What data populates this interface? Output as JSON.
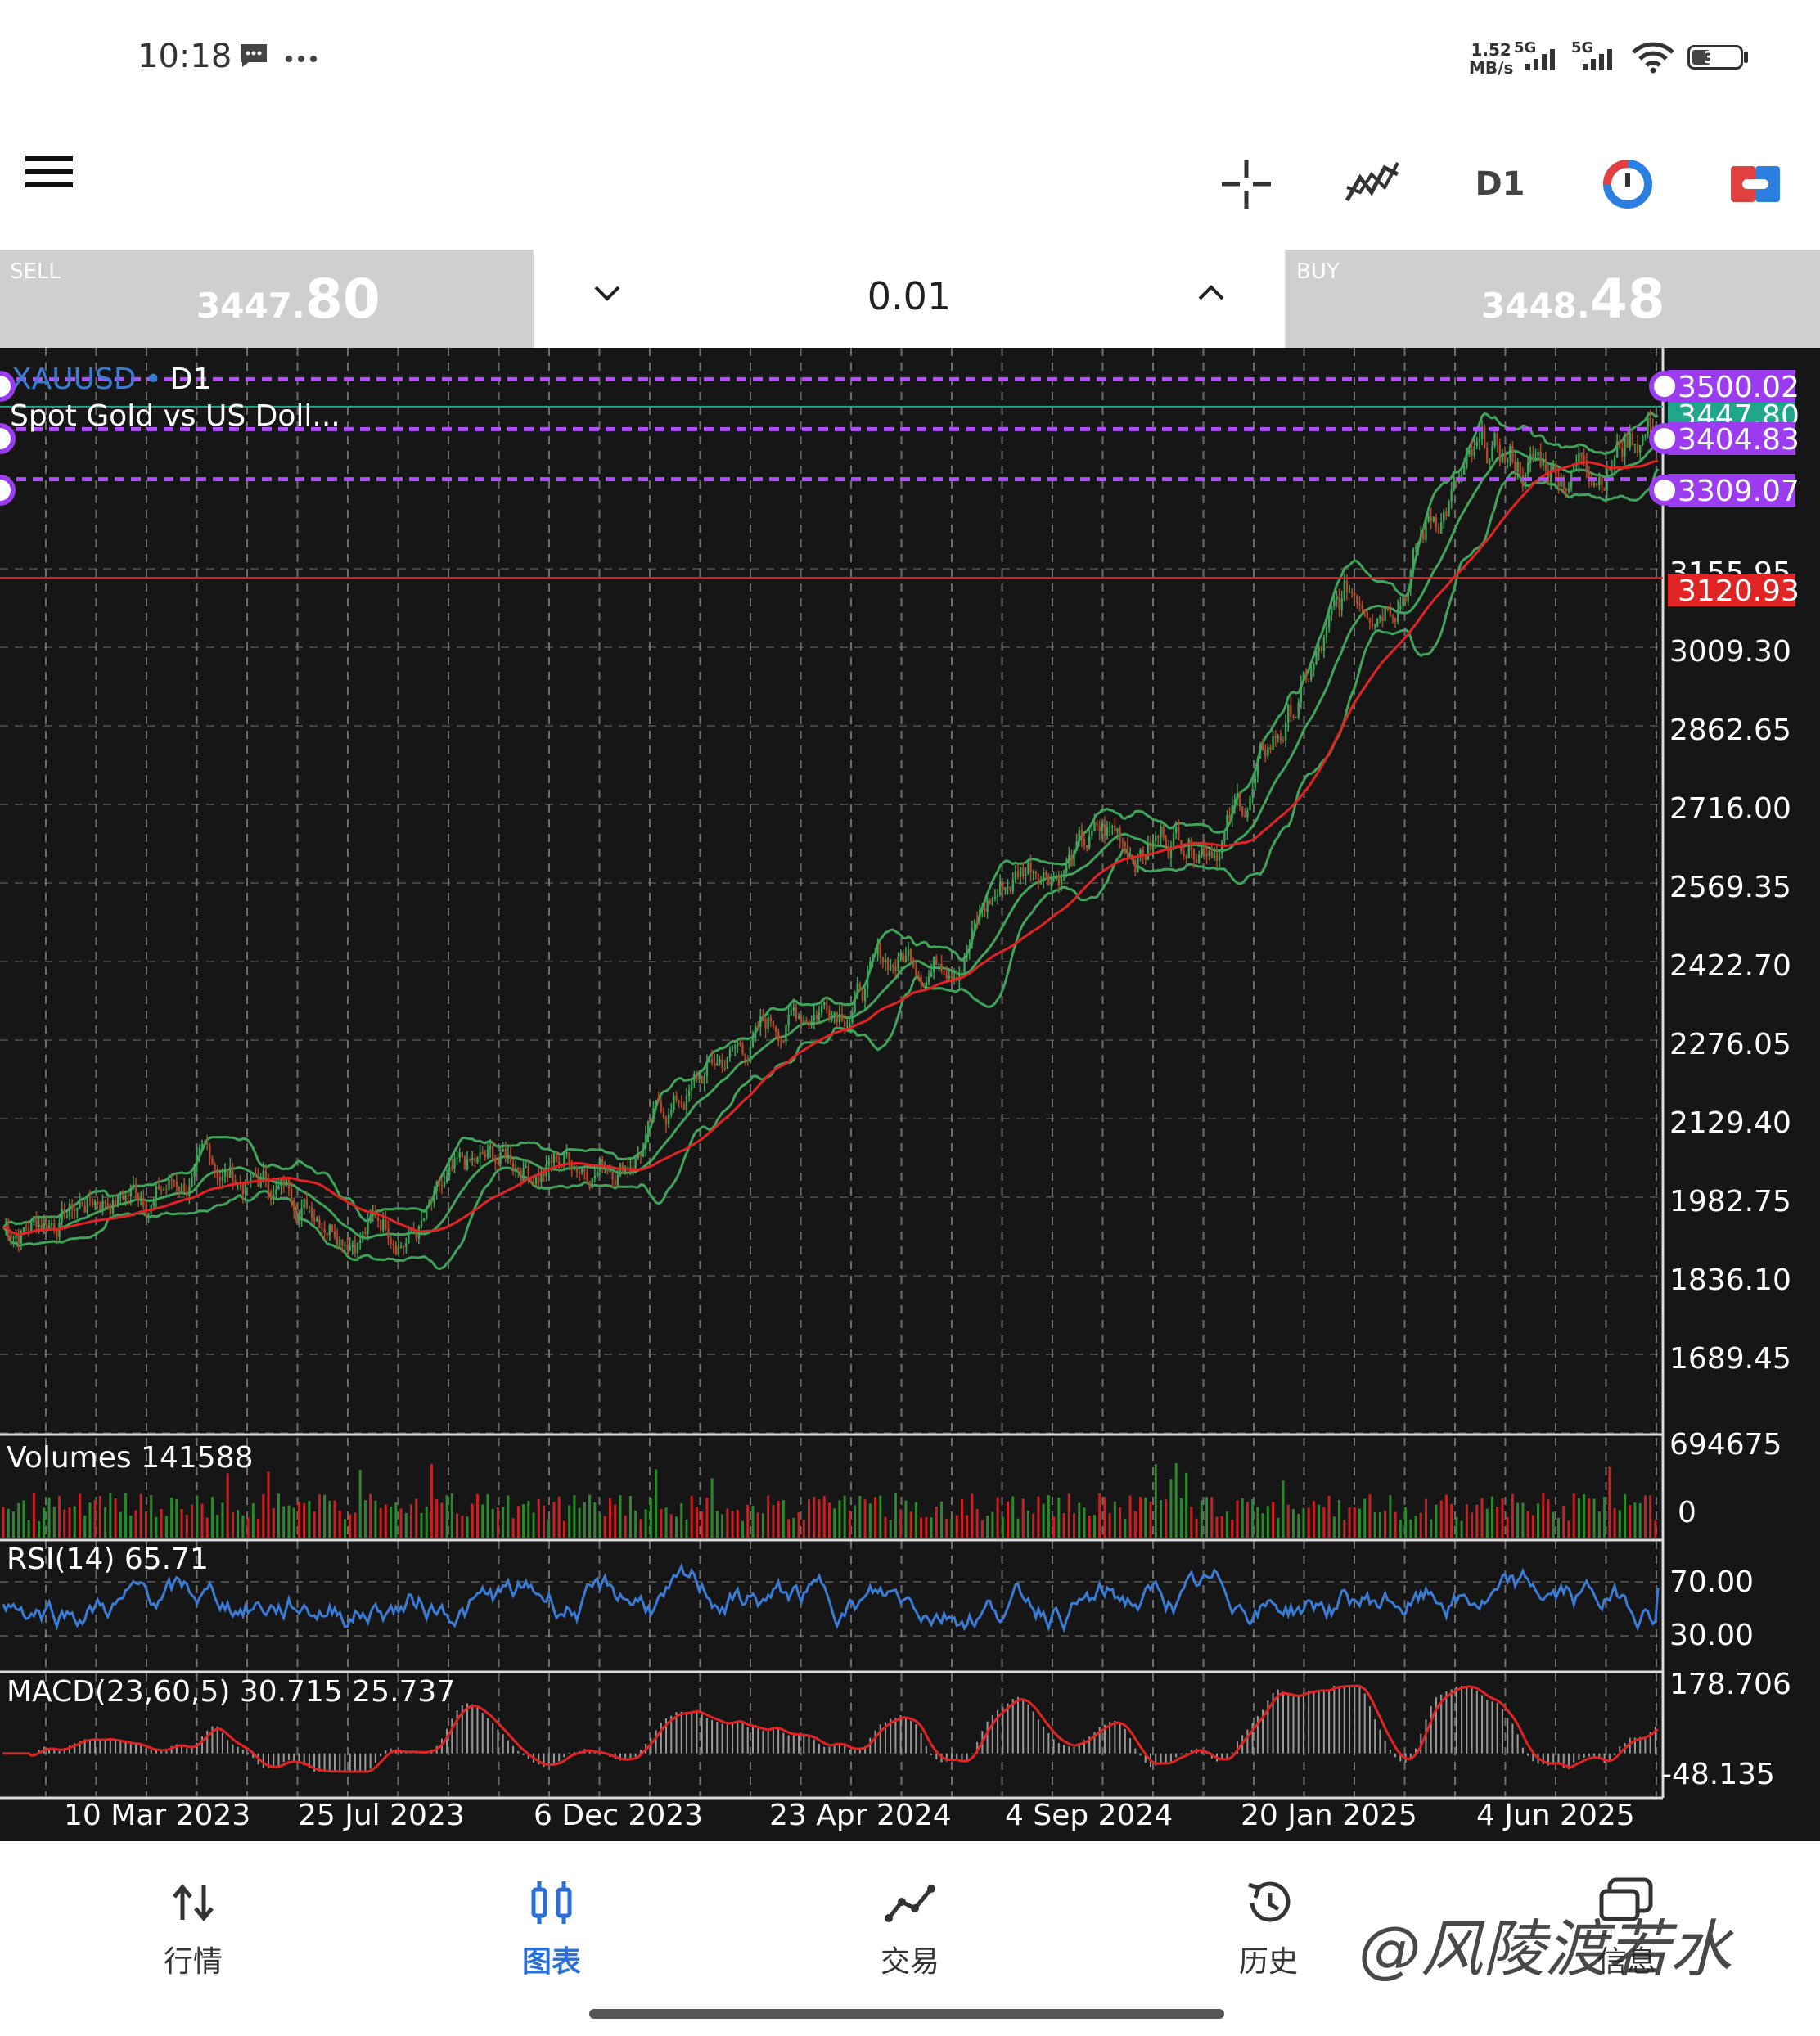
{
  "status_bar": {
    "time": "10:18",
    "net_speed_value": "1.52",
    "net_speed_unit": "MB/s",
    "network_1": "5G",
    "network_2": "5G",
    "battery": "39"
  },
  "toolbar": {
    "timeframe": "D1",
    "icons": [
      "menu-icon",
      "crosshair-icon",
      "indicators-icon",
      "timeframe",
      "sync-icon",
      "trade-toggle-icon"
    ]
  },
  "trade_panel": {
    "sell_label": "SELL",
    "sell_price_main": "3447.",
    "sell_price_big": "80",
    "lot": "0.01",
    "buy_label": "BUY",
    "buy_price_main": "3448.",
    "buy_price_big": "48"
  },
  "chart": {
    "symbol": "XAUUSD",
    "timeframe_label": "D1",
    "symbol_separator": "•",
    "description": "Spot Gold vs US Doll...",
    "colors": {
      "background": "#161616",
      "grid": "#8a8a8a",
      "bollinger": "#3fa35a",
      "ma": "#e02424",
      "level_lines": "#b14fff",
      "bid_line": "#1fa58a",
      "alert_line": "#e02424",
      "rsi": "#3a7bd5",
      "macd_signal": "#e02424",
      "macd_hist": "#9a9a9a",
      "volume_up": "#2a8a2a",
      "volume_down": "#cc2020"
    },
    "price_ticks": [
      "3155.95",
      "3009.30",
      "2862.65",
      "2716.00",
      "2569.35",
      "2422.70",
      "2276.05",
      "2129.40",
      "1982.75",
      "1836.10",
      "1689.45"
    ],
    "level_labels": [
      "3500.02",
      "3404.83",
      "3309.07"
    ],
    "bid_label": "3447.80",
    "alert_label": "3120.93",
    "date_labels": [
      "10 Mar 2023",
      "25 Jul 2023",
      "6 Dec 2023",
      "23 Apr 2024",
      "4 Sep 2024",
      "20 Jan 2025",
      "4 Jun 2025"
    ],
    "volumes_label": "Volumes 141588",
    "volume_ticks": [
      "694675",
      "0"
    ],
    "rsi_label": "RSI(14) 65.71",
    "rsi_ticks": [
      "70.00",
      "30.00"
    ],
    "macd_label": "MACD(23,60,5) 30.715 25.737",
    "macd_ticks": [
      "178.706",
      "-48.135"
    ]
  },
  "chart_data": {
    "type": "candlestick",
    "symbol": "XAUUSD",
    "timeframe": "D1",
    "x_start": "2023-01-01",
    "x_end": "2025-08-15",
    "x": [
      "2023-01",
      "2023-03",
      "2023-05",
      "2023-07",
      "2023-09",
      "2023-11",
      "2024-01",
      "2024-03",
      "2024-05",
      "2024-07",
      "2024-09",
      "2024-11",
      "2025-01",
      "2025-03",
      "2025-05",
      "2025-07",
      "2025-08"
    ],
    "close": [
      1880,
      1950,
      1985,
      1940,
      1900,
      2000,
      2040,
      2200,
      2340,
      2420,
      2600,
      2620,
      2700,
      3050,
      3300,
      3330,
      3447.8
    ],
    "ylim": [
      1600,
      3560
    ],
    "levels": [
      3500.02,
      3404.83,
      3309.07
    ],
    "bid": 3447.8,
    "alert": 3120.93,
    "indicators": {
      "volume_last": 141588,
      "rsi_period": 14,
      "rsi_last": 65.71,
      "macd_params": [
        23,
        60,
        5
      ],
      "macd_last": 30.715,
      "macd_signal_last": 25.737,
      "macd_range": [
        -48.135,
        178.706
      ]
    }
  },
  "bottom_nav": {
    "items": [
      {
        "label": "行情",
        "icon": "quotes-icon"
      },
      {
        "label": "图表",
        "icon": "chart-icon"
      },
      {
        "label": "交易",
        "icon": "trade-icon"
      },
      {
        "label": "历史",
        "icon": "history-icon"
      },
      {
        "label": "信息",
        "icon": "messages-icon"
      }
    ],
    "active": 1
  },
  "watermark": "@风陵渡若水"
}
